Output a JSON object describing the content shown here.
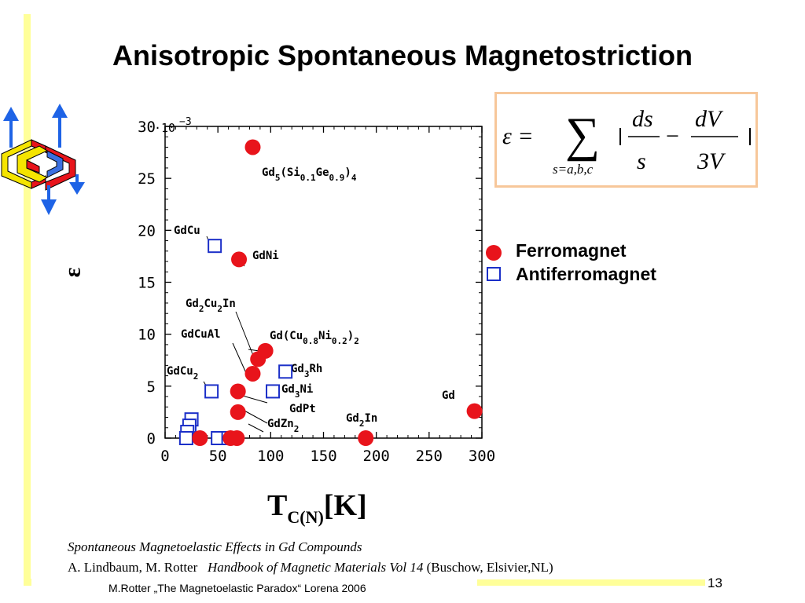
{
  "slide": {
    "title": "Anisotropic Spontaneous Magnetostriction",
    "y_axis_symbol": "ε",
    "x_axis_label_main": "T",
    "x_axis_label_sub": "C(N)",
    "x_axis_label_unit": "[K]",
    "citation_line1": "Spontaneous Magnetoelastic Effects in Gd Compounds",
    "citation_authors": "A. Lindbaum, M. Rotter",
    "citation_book": "Handbook of Magnetic Materials Vol 14",
    "citation_publisher": "(Buschow, Elsivier,NL)",
    "footer": "M.Rotter „The Magnetoelastic Paradox“ Lorena 2006",
    "page_number": "13"
  },
  "formula": {
    "lhs": "ε =",
    "sum_index": "s=a,b,c",
    "term1_num": "ds",
    "term1_den": "s",
    "minus": "−",
    "term2_num": "dV",
    "term2_den": "3V"
  },
  "legend": {
    "ferro": "Ferromagnet",
    "antiferro": "Antiferromagnet"
  },
  "colors": {
    "ferro": "#e8141b",
    "antiferro": "#1b2fc8",
    "accent_bar": "#ffff99",
    "formula_border": "#f7c79a"
  },
  "chart_data": {
    "type": "scatter",
    "y_multiplier_label": "·10",
    "y_multiplier_exp": "−3",
    "xlim": [
      0,
      300
    ],
    "ylim": [
      0,
      30
    ],
    "x_ticks": [
      0,
      50,
      100,
      150,
      200,
      250,
      300
    ],
    "y_ticks": [
      0,
      5,
      10,
      15,
      20,
      25,
      30
    ],
    "grid": false,
    "series": [
      {
        "name": "Ferromagnet",
        "marker": "filled-circle",
        "points": [
          {
            "x": 83,
            "y": 28.0
          },
          {
            "x": 70,
            "y": 17.2
          },
          {
            "x": 95,
            "y": 8.4
          },
          {
            "x": 88,
            "y": 7.6
          },
          {
            "x": 83,
            "y": 6.2
          },
          {
            "x": 69,
            "y": 4.5
          },
          {
            "x": 69,
            "y": 2.5
          },
          {
            "x": 293,
            "y": 2.6
          },
          {
            "x": 190,
            "y": 0.0
          },
          {
            "x": 33,
            "y": 0.0
          },
          {
            "x": 62,
            "y": 0.0
          },
          {
            "x": 68,
            "y": 0.0
          }
        ]
      },
      {
        "name": "Antiferromagnet",
        "marker": "open-square",
        "points": [
          {
            "x": 47,
            "y": 18.5
          },
          {
            "x": 114,
            "y": 6.4
          },
          {
            "x": 44,
            "y": 4.5
          },
          {
            "x": 102,
            "y": 4.5
          },
          {
            "x": 25,
            "y": 1.8
          },
          {
            "x": 23,
            "y": 1.2
          },
          {
            "x": 21,
            "y": 0.6
          },
          {
            "x": 20,
            "y": 0.0
          },
          {
            "x": 50,
            "y": 0.0
          },
          {
            "x": 60,
            "y": 0.0
          }
        ]
      }
    ],
    "annotations": [
      {
        "label": "Gd5(Si0.1Ge0.9)4",
        "main": "Gd",
        "parts": [
          [
            "5",
            "sub"
          ],
          [
            "(Si",
            "n"
          ],
          [
            "0.1",
            "sub"
          ],
          [
            "Ge",
            "n"
          ],
          [
            "0.9",
            "sub"
          ],
          [
            ")",
            "n"
          ],
          [
            "4",
            "sub"
          ]
        ]
      },
      {
        "label": "GdCu",
        "main": "GdCu",
        "parts": []
      },
      {
        "label": "GdNi",
        "main": "GdNi",
        "parts": []
      },
      {
        "label": "Gd2Cu2In",
        "main": "Gd",
        "parts": [
          [
            "2",
            "sub"
          ],
          [
            "Cu",
            "n"
          ],
          [
            "2",
            "sub"
          ],
          [
            "In",
            "n"
          ]
        ]
      },
      {
        "label": "GdCuAl",
        "main": "GdCuAl",
        "parts": []
      },
      {
        "label": "Gd(Cu0.8Ni0.2)2",
        "main": "Gd(Cu",
        "parts": [
          [
            "0.8",
            "sub"
          ],
          [
            "Ni",
            "n"
          ],
          [
            "0.2",
            "sub"
          ],
          [
            ")",
            "n"
          ],
          [
            "2",
            "sub"
          ]
        ]
      },
      {
        "label": "GdCu2",
        "main": "GdCu",
        "parts": [
          [
            "2",
            "sub"
          ]
        ]
      },
      {
        "label": "Gd3Rh",
        "main": "Gd",
        "parts": [
          [
            "3",
            "sub"
          ],
          [
            "Rh",
            "n"
          ]
        ]
      },
      {
        "label": "Gd3Ni",
        "main": "Gd",
        "parts": [
          [
            "3",
            "sub"
          ],
          [
            "Ni",
            "n"
          ]
        ]
      },
      {
        "label": "GdPt",
        "main": "GdPt",
        "parts": []
      },
      {
        "label": "GdZn2",
        "main": "GdZn",
        "parts": [
          [
            "2",
            "sub"
          ]
        ]
      },
      {
        "label": "Gd2In",
        "main": "Gd",
        "parts": [
          [
            "2",
            "sub"
          ],
          [
            "In",
            "n"
          ]
        ]
      },
      {
        "label": "Gd",
        "main": "Gd",
        "parts": []
      }
    ]
  }
}
